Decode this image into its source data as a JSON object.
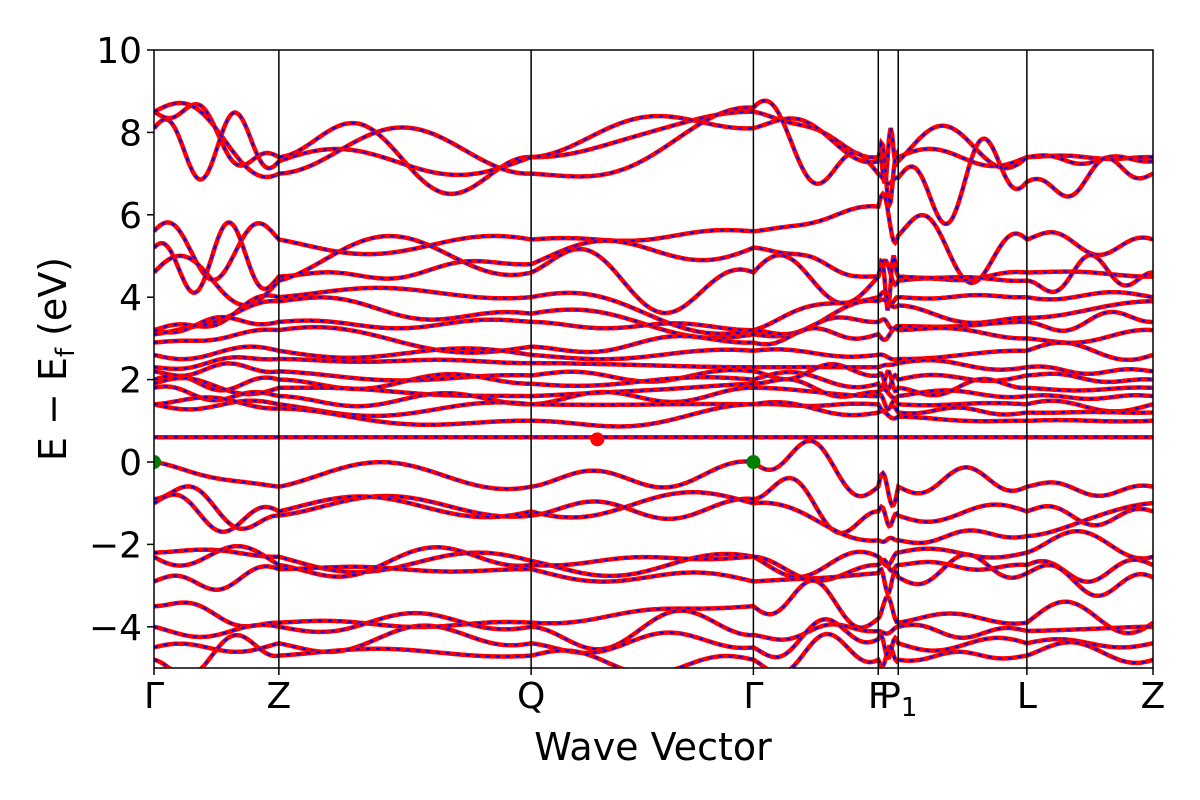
{
  "chart_data": {
    "type": "line",
    "xlabel": "Wave Vector",
    "ylabel_parts": {
      "main": "E − E",
      "sub": "f",
      "unit": " (eV)"
    },
    "ylim": [
      -5,
      10
    ],
    "yticks": [
      -4,
      -2,
      0,
      2,
      4,
      6,
      8,
      10
    ],
    "ytick_labels": [
      "−4",
      "−2",
      "0",
      "2",
      "4",
      "6",
      "8",
      "10"
    ],
    "xlim": [
      0,
      8.0
    ],
    "kpoints": [
      {
        "label": "Γ",
        "x": 0.0
      },
      {
        "label": "Z",
        "x": 1.0
      },
      {
        "label": "Q",
        "x": 3.02
      },
      {
        "label": "Γ",
        "x": 4.8
      },
      {
        "label": "F",
        "x": 5.8
      },
      {
        "label": "P",
        "x": 5.96,
        "sub": "1"
      },
      {
        "label": "L",
        "x": 6.99
      },
      {
        "label": "Z",
        "x": 8.0
      }
    ],
    "series": [
      {
        "color": "#ff0000",
        "style": "solid"
      },
      {
        "color": "#0000ff",
        "style": "dashed"
      }
    ],
    "band_edges": {
      "vbm": [
        {
          "x": 0.0,
          "y": 0.0
        },
        {
          "x": 4.8,
          "y": 0.0
        }
      ],
      "cbm": [
        {
          "x": 3.55,
          "y": 0.55
        }
      ]
    },
    "flat_band_energy": 0.6,
    "colors": {
      "line_red": "#ff0000",
      "line_blue": "#0000ff",
      "vbm_marker": "#008000",
      "cbm_marker": "#ff0000"
    },
    "grid": false
  }
}
